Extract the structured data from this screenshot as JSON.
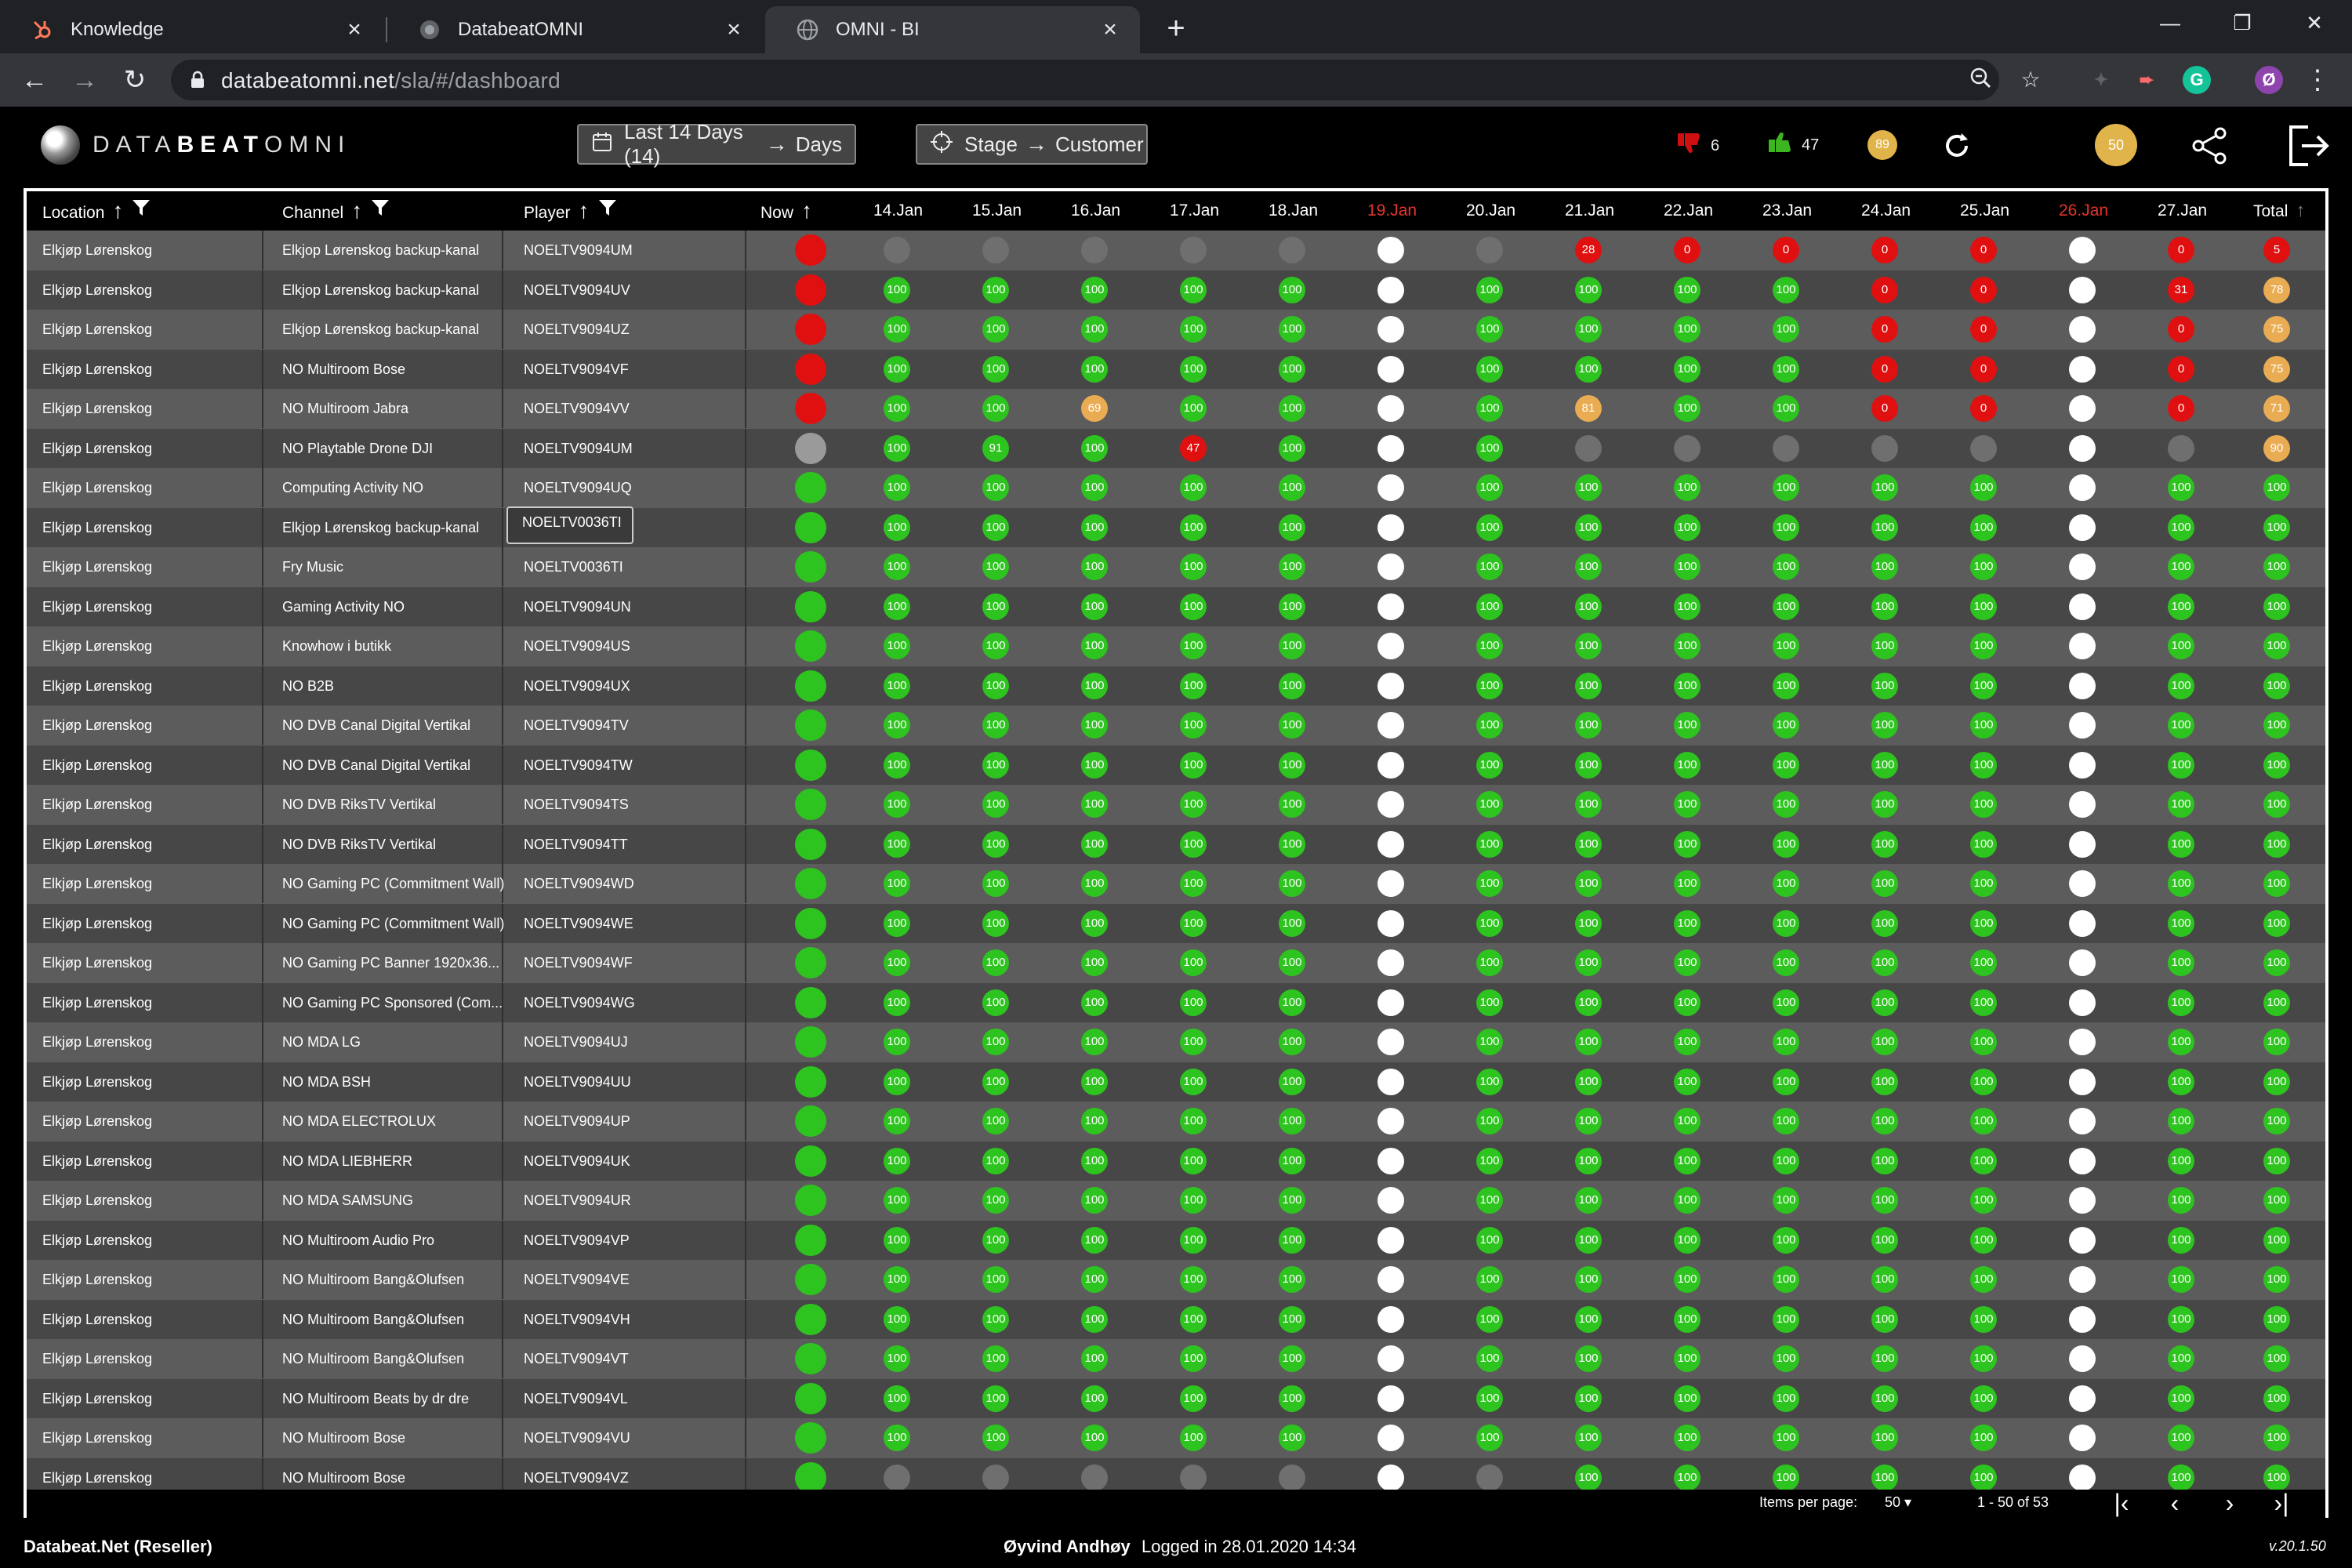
{
  "browser": {
    "tabs": [
      {
        "title": "Knowledge",
        "active": false
      },
      {
        "title": "DatabeatOMNI",
        "active": false
      },
      {
        "title": "OMNI - BI",
        "active": true
      }
    ],
    "url_host": "databeatomni.net",
    "url_path": "/sla/#/dashboard"
  },
  "app": {
    "logo_text_light": "DATA",
    "logo_text_bold": "BEAT",
    "logo_text_tail": "OMNI",
    "period_button": {
      "label": "Last 14 Days (14)",
      "unit": "Days"
    },
    "stage_button": {
      "label": "Stage",
      "target": "Customer"
    },
    "stats": {
      "thumbs_down": "6",
      "thumbs_up": "47",
      "score": "89",
      "user_score": "50"
    }
  },
  "grid": {
    "headers": {
      "location": "Location",
      "channel": "Channel",
      "player": "Player",
      "now": "Now",
      "total": "Total"
    },
    "dates": [
      "14.Jan",
      "15.Jan",
      "16.Jan",
      "17.Jan",
      "18.Jan",
      "19.Jan",
      "20.Jan",
      "21.Jan",
      "22.Jan",
      "23.Jan",
      "24.Jan",
      "25.Jan",
      "26.Jan",
      "27.Jan"
    ],
    "weekend_dates": [
      "19.Jan",
      "26.Jan"
    ],
    "tooltip_player": "NOELTV0036TI",
    "rows": [
      {
        "location": "Elkjøp Lørenskog",
        "channel": "Elkjop Lørenskog backup-kanal",
        "player": "NOELTV9094UM",
        "now": "r",
        "days": [
          "nd",
          "nd",
          "nd",
          "nd",
          "nd",
          "w",
          "nd",
          "r:28",
          "r:0",
          "r:0",
          "r:0",
          "r:0",
          "w",
          "r:0"
        ],
        "total": "r:5"
      },
      {
        "location": "Elkjøp Lørenskog",
        "channel": "Elkjop Lørenskog backup-kanal",
        "player": "NOELTV9094UV",
        "now": "r",
        "days": [
          "g:100",
          "g:100",
          "g:100",
          "g:100",
          "g:100",
          "w",
          "g:100",
          "g:100",
          "g:100",
          "g:100",
          "r:0",
          "r:0",
          "w",
          "r:31"
        ],
        "total": "o:78"
      },
      {
        "location": "Elkjøp Lørenskog",
        "channel": "Elkjop Lørenskog backup-kanal",
        "player": "NOELTV9094UZ",
        "now": "r",
        "days": [
          "g:100",
          "g:100",
          "g:100",
          "g:100",
          "g:100",
          "w",
          "g:100",
          "g:100",
          "g:100",
          "g:100",
          "r:0",
          "r:0",
          "w",
          "r:0"
        ],
        "total": "o:75"
      },
      {
        "location": "Elkjøp Lørenskog",
        "channel": "NO Multiroom Bose",
        "player": "NOELTV9094VF",
        "now": "r",
        "days": [
          "g:100",
          "g:100",
          "g:100",
          "g:100",
          "g:100",
          "w",
          "g:100",
          "g:100",
          "g:100",
          "g:100",
          "r:0",
          "r:0",
          "w",
          "r:0"
        ],
        "total": "o:75"
      },
      {
        "location": "Elkjøp Lørenskog",
        "channel": "NO Multiroom Jabra",
        "player": "NOELTV9094VV",
        "now": "r",
        "days": [
          "g:100",
          "g:100",
          "o:69",
          "g:100",
          "g:100",
          "w",
          "g:100",
          "o:81",
          "g:100",
          "g:100",
          "r:0",
          "r:0",
          "w",
          "r:0"
        ],
        "total": "o:71"
      },
      {
        "location": "Elkjøp Lørenskog",
        "channel": "NO Playtable Drone DJI",
        "player": "NOELTV9094UM",
        "now": "gr",
        "days": [
          "g:100",
          "g:91",
          "g:100",
          "r:47",
          "g:100",
          "w",
          "g:100",
          "nd",
          "nd",
          "nd",
          "nd",
          "nd",
          "w",
          "nd"
        ],
        "total": "o:90"
      },
      {
        "location": "Elkjøp Lørenskog",
        "channel": "Computing Activity NO",
        "player": "NOELTV9094UQ",
        "now": "g",
        "days": [
          "g:100",
          "g:100",
          "g:100",
          "g:100",
          "g:100",
          "w",
          "g:100",
          "g:100",
          "g:100",
          "g:100",
          "g:100",
          "g:100",
          "w",
          "g:100"
        ],
        "total": "g:100"
      },
      {
        "location": "Elkjøp Lørenskog",
        "channel": "Elkjop Lørenskog backup-kanal",
        "player": "NOELTV0036TI",
        "now": "g",
        "days": [
          "g:100",
          "g:100",
          "g:100",
          "g:100",
          "g:100",
          "w",
          "g:100",
          "g:100",
          "g:100",
          "g:100",
          "g:100",
          "g:100",
          "w",
          "g:100"
        ],
        "total": "g:100"
      },
      {
        "location": "Elkjøp Lørenskog",
        "channel": "Fry Music",
        "player": "NOELTV0036TI",
        "now": "g",
        "days": [
          "g:100",
          "g:100",
          "g:100",
          "g:100",
          "g:100",
          "w",
          "g:100",
          "g:100",
          "g:100",
          "g:100",
          "g:100",
          "g:100",
          "w",
          "g:100"
        ],
        "total": "g:100"
      },
      {
        "location": "Elkjøp Lørenskog",
        "channel": "Gaming Activity NO",
        "player": "NOELTV9094UN",
        "now": "g",
        "days": [
          "g:100",
          "g:100",
          "g:100",
          "g:100",
          "g:100",
          "w",
          "g:100",
          "g:100",
          "g:100",
          "g:100",
          "g:100",
          "g:100",
          "w",
          "g:100"
        ],
        "total": "g:100"
      },
      {
        "location": "Elkjøp Lørenskog",
        "channel": "Knowhow i butikk",
        "player": "NOELTV9094US",
        "now": "g",
        "days": [
          "g:100",
          "g:100",
          "g:100",
          "g:100",
          "g:100",
          "w",
          "g:100",
          "g:100",
          "g:100",
          "g:100",
          "g:100",
          "g:100",
          "w",
          "g:100"
        ],
        "total": "g:100"
      },
      {
        "location": "Elkjøp Lørenskog",
        "channel": "NO B2B",
        "player": "NOELTV9094UX",
        "now": "g",
        "days": [
          "g:100",
          "g:100",
          "g:100",
          "g:100",
          "g:100",
          "w",
          "g:100",
          "g:100",
          "g:100",
          "g:100",
          "g:100",
          "g:100",
          "w",
          "g:100"
        ],
        "total": "g:100"
      },
      {
        "location": "Elkjøp Lørenskog",
        "channel": "NO DVB Canal Digital Vertikal",
        "player": "NOELTV9094TV",
        "now": "g",
        "days": [
          "g:100",
          "g:100",
          "g:100",
          "g:100",
          "g:100",
          "w",
          "g:100",
          "g:100",
          "g:100",
          "g:100",
          "g:100",
          "g:100",
          "w",
          "g:100"
        ],
        "total": "g:100"
      },
      {
        "location": "Elkjøp Lørenskog",
        "channel": "NO DVB Canal Digital Vertikal",
        "player": "NOELTV9094TW",
        "now": "g",
        "days": [
          "g:100",
          "g:100",
          "g:100",
          "g:100",
          "g:100",
          "w",
          "g:100",
          "g:100",
          "g:100",
          "g:100",
          "g:100",
          "g:100",
          "w",
          "g:100"
        ],
        "total": "g:100"
      },
      {
        "location": "Elkjøp Lørenskog",
        "channel": "NO DVB RiksTV Vertikal",
        "player": "NOELTV9094TS",
        "now": "g",
        "days": [
          "g:100",
          "g:100",
          "g:100",
          "g:100",
          "g:100",
          "w",
          "g:100",
          "g:100",
          "g:100",
          "g:100",
          "g:100",
          "g:100",
          "w",
          "g:100"
        ],
        "total": "g:100"
      },
      {
        "location": "Elkjøp Lørenskog",
        "channel": "NO DVB RiksTV Vertikal",
        "player": "NOELTV9094TT",
        "now": "g",
        "days": [
          "g:100",
          "g:100",
          "g:100",
          "g:100",
          "g:100",
          "w",
          "g:100",
          "g:100",
          "g:100",
          "g:100",
          "g:100",
          "g:100",
          "w",
          "g:100"
        ],
        "total": "g:100"
      },
      {
        "location": "Elkjøp Lørenskog",
        "channel": "NO Gaming PC (Commitment Wall)",
        "player": "NOELTV9094WD",
        "now": "g",
        "days": [
          "g:100",
          "g:100",
          "g:100",
          "g:100",
          "g:100",
          "w",
          "g:100",
          "g:100",
          "g:100",
          "g:100",
          "g:100",
          "g:100",
          "w",
          "g:100"
        ],
        "total": "g:100"
      },
      {
        "location": "Elkjøp Lørenskog",
        "channel": "NO Gaming PC (Commitment Wall)",
        "player": "NOELTV9094WE",
        "now": "g",
        "days": [
          "g:100",
          "g:100",
          "g:100",
          "g:100",
          "g:100",
          "w",
          "g:100",
          "g:100",
          "g:100",
          "g:100",
          "g:100",
          "g:100",
          "w",
          "g:100"
        ],
        "total": "g:100"
      },
      {
        "location": "Elkjøp Lørenskog",
        "channel": "NO Gaming PC Banner 1920x36...",
        "player": "NOELTV9094WF",
        "now": "g",
        "days": [
          "g:100",
          "g:100",
          "g:100",
          "g:100",
          "g:100",
          "w",
          "g:100",
          "g:100",
          "g:100",
          "g:100",
          "g:100",
          "g:100",
          "w",
          "g:100"
        ],
        "total": "g:100"
      },
      {
        "location": "Elkjøp Lørenskog",
        "channel": "NO Gaming PC Sponsored (Com...",
        "player": "NOELTV9094WG",
        "now": "g",
        "days": [
          "g:100",
          "g:100",
          "g:100",
          "g:100",
          "g:100",
          "w",
          "g:100",
          "g:100",
          "g:100",
          "g:100",
          "g:100",
          "g:100",
          "w",
          "g:100"
        ],
        "total": "g:100"
      },
      {
        "location": "Elkjøp Lørenskog",
        "channel": "NO MDA LG",
        "player": "NOELTV9094UJ",
        "now": "g",
        "days": [
          "g:100",
          "g:100",
          "g:100",
          "g:100",
          "g:100",
          "w",
          "g:100",
          "g:100",
          "g:100",
          "g:100",
          "g:100",
          "g:100",
          "w",
          "g:100"
        ],
        "total": "g:100"
      },
      {
        "location": "Elkjøp Lørenskog",
        "channel": "NO MDA BSH",
        "player": "NOELTV9094UU",
        "now": "g",
        "days": [
          "g:100",
          "g:100",
          "g:100",
          "g:100",
          "g:100",
          "w",
          "g:100",
          "g:100",
          "g:100",
          "g:100",
          "g:100",
          "g:100",
          "w",
          "g:100"
        ],
        "total": "g:100"
      },
      {
        "location": "Elkjøp Lørenskog",
        "channel": "NO MDA ELECTROLUX",
        "player": "NOELTV9094UP",
        "now": "g",
        "days": [
          "g:100",
          "g:100",
          "g:100",
          "g:100",
          "g:100",
          "w",
          "g:100",
          "g:100",
          "g:100",
          "g:100",
          "g:100",
          "g:100",
          "w",
          "g:100"
        ],
        "total": "g:100"
      },
      {
        "location": "Elkjøp Lørenskog",
        "channel": "NO MDA LIEBHERR",
        "player": "NOELTV9094UK",
        "now": "g",
        "days": [
          "g:100",
          "g:100",
          "g:100",
          "g:100",
          "g:100",
          "w",
          "g:100",
          "g:100",
          "g:100",
          "g:100",
          "g:100",
          "g:100",
          "w",
          "g:100"
        ],
        "total": "g:100"
      },
      {
        "location": "Elkjøp Lørenskog",
        "channel": "NO MDA SAMSUNG",
        "player": "NOELTV9094UR",
        "now": "g",
        "days": [
          "g:100",
          "g:100",
          "g:100",
          "g:100",
          "g:100",
          "w",
          "g:100",
          "g:100",
          "g:100",
          "g:100",
          "g:100",
          "g:100",
          "w",
          "g:100"
        ],
        "total": "g:100"
      },
      {
        "location": "Elkjøp Lørenskog",
        "channel": "NO Multiroom Audio Pro",
        "player": "NOELTV9094VP",
        "now": "g",
        "days": [
          "g:100",
          "g:100",
          "g:100",
          "g:100",
          "g:100",
          "w",
          "g:100",
          "g:100",
          "g:100",
          "g:100",
          "g:100",
          "g:100",
          "w",
          "g:100"
        ],
        "total": "g:100"
      },
      {
        "location": "Elkjøp Lørenskog",
        "channel": "NO Multiroom Bang&Olufsen",
        "player": "NOELTV9094VE",
        "now": "g",
        "days": [
          "g:100",
          "g:100",
          "g:100",
          "g:100",
          "g:100",
          "w",
          "g:100",
          "g:100",
          "g:100",
          "g:100",
          "g:100",
          "g:100",
          "w",
          "g:100"
        ],
        "total": "g:100"
      },
      {
        "location": "Elkjøp Lørenskog",
        "channel": "NO Multiroom Bang&Olufsen",
        "player": "NOELTV9094VH",
        "now": "g",
        "days": [
          "g:100",
          "g:100",
          "g:100",
          "g:100",
          "g:100",
          "w",
          "g:100",
          "g:100",
          "g:100",
          "g:100",
          "g:100",
          "g:100",
          "w",
          "g:100"
        ],
        "total": "g:100"
      },
      {
        "location": "Elkjøp Lørenskog",
        "channel": "NO Multiroom Bang&Olufsen",
        "player": "NOELTV9094VT",
        "now": "g",
        "days": [
          "g:100",
          "g:100",
          "g:100",
          "g:100",
          "g:100",
          "w",
          "g:100",
          "g:100",
          "g:100",
          "g:100",
          "g:100",
          "g:100",
          "w",
          "g:100"
        ],
        "total": "g:100"
      },
      {
        "location": "Elkjøp Lørenskog",
        "channel": "NO Multiroom Beats by dr dre",
        "player": "NOELTV9094VL",
        "now": "g",
        "days": [
          "g:100",
          "g:100",
          "g:100",
          "g:100",
          "g:100",
          "w",
          "g:100",
          "g:100",
          "g:100",
          "g:100",
          "g:100",
          "g:100",
          "w",
          "g:100"
        ],
        "total": "g:100"
      },
      {
        "location": "Elkjøp Lørenskog",
        "channel": "NO Multiroom Bose",
        "player": "NOELTV9094VU",
        "now": "g",
        "days": [
          "g:100",
          "g:100",
          "g:100",
          "g:100",
          "g:100",
          "w",
          "g:100",
          "g:100",
          "g:100",
          "g:100",
          "g:100",
          "g:100",
          "w",
          "g:100"
        ],
        "total": "g:100"
      },
      {
        "location": "Elkjøp Lørenskog",
        "channel": "NO Multiroom Bose",
        "player": "NOELTV9094VZ",
        "now": "g",
        "days": [
          "nd",
          "nd",
          "nd",
          "nd",
          "nd",
          "w",
          "nd",
          "g:100",
          "g:100",
          "g:100",
          "g:100",
          "g:100",
          "w",
          "g:100"
        ],
        "total": "g:100"
      }
    ]
  },
  "pagination": {
    "items_per_page_label": "Items per page:",
    "items_per_page": "50",
    "range": "1 - 50 of 53"
  },
  "footer": {
    "org": "Databeat.Net (Reseller)",
    "user": "Øyvind Andhøy",
    "login": "Logged in 28.01.2020 14:34",
    "version": "v.20.1.50"
  }
}
